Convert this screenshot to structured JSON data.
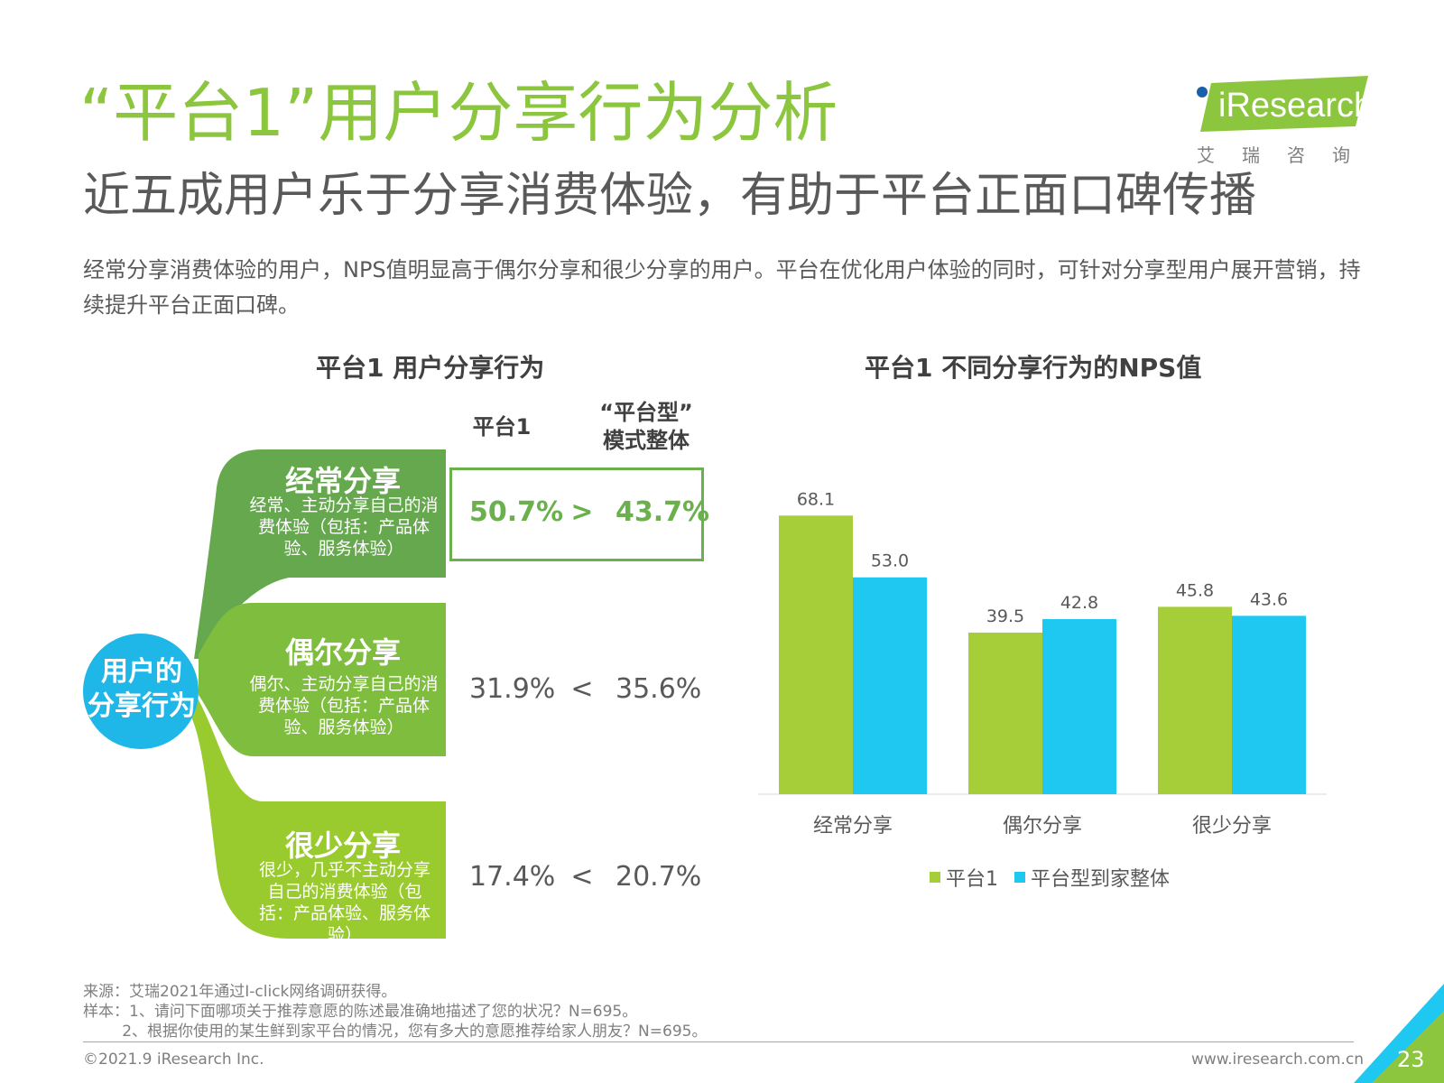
{
  "header": {
    "title": "“平台1”用户分享行为分析",
    "subtitle": "近五成用户乐于分享消费体验，有助于平台正面口碑传播",
    "description": "经常分享消费体验的用户，NPS值明显高于偶尔分享和很少分享的用户。平台在优化用户体验的同时，可针对分享型用户展开营销，持续提升平台正面口碑。"
  },
  "logo": {
    "text": "iResearch",
    "cn": "艾瑞咨询"
  },
  "left_panel": {
    "title": "平台1 用户分享行为",
    "col_platform": "平台1",
    "col_model_line1": "“平台型”",
    "col_model_line2": "模式整体",
    "center_line1": "用户的",
    "center_line2": "分享行为",
    "categories": [
      {
        "name": "经常分享",
        "desc": "经常、主动分享自己的消费体验（包括：产品体验、服务体验）",
        "platform": "50.7%",
        "op": ">",
        "model": "43.7%",
        "color": "#66a84e"
      },
      {
        "name": "偶尔分享",
        "desc": "偶尔、主动分享自己的消费体验（包括：产品体验、服务体验）",
        "platform": "31.9%",
        "op": "<",
        "model": "35.6%",
        "color": "#7fbd3f"
      },
      {
        "name": "很少分享",
        "desc": "很少，几乎不主动分享自己的消费体验（包括：产品体验、服务体验）",
        "platform": "17.4%",
        "op": "<",
        "model": "20.7%",
        "color": "#9acb2e"
      }
    ],
    "center_color": "#1fb6e8"
  },
  "chart_data": {
    "type": "bar",
    "title": "平台1  不同分享行为的NPS值",
    "categories": [
      "经常分享",
      "偶尔分享",
      "很少分享"
    ],
    "series": [
      {
        "name": "平台1",
        "values": [
          68.1,
          39.5,
          45.8
        ],
        "color": "#a6ce39",
        "labels": [
          "68.1",
          "39.5",
          "45.8"
        ]
      },
      {
        "name": "平台型到家整体",
        "values": [
          53.0,
          42.8,
          43.6
        ],
        "color": "#1ec8f0",
        "labels": [
          "53.0",
          "42.8",
          "43.6"
        ]
      }
    ],
    "ylim": [
      0,
      75
    ],
    "grid": false,
    "legend": "bottom"
  },
  "footer": {
    "source1": "来源：艾瑞2021年通过I-click网络调研获得。",
    "source2": "样本：1、请问下面哪项关于推荐意愿的陈述最准确地描述了您的状况？N=695。",
    "source3": "        2、根据你使用的某生鲜到家平台的情况，您有多大的意愿推荐给家人朋友？N=695。",
    "copyright": "©2021.9 iResearch Inc.",
    "url": "www.iresearch.com.cn",
    "page": "23"
  }
}
